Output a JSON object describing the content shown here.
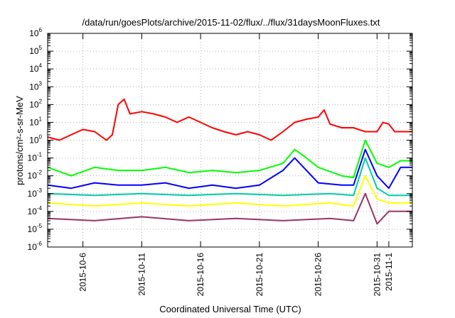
{
  "chart_data": {
    "type": "line",
    "title": "/data/run/goesPlots/archive/2015-11-02/flux/../flux/31daysMoonFluxes.txt",
    "xlabel": "Coordinated Universal Time (UTC)",
    "ylabel": "protons/cm²-s-sr-MeV",
    "y_scale": "log",
    "ylim_exponent": [
      -6,
      6
    ],
    "xlim": [
      "2015-10-03",
      "2015-11-03"
    ],
    "grid": true,
    "x_ticks": [
      {
        "date": "2015-10-06",
        "label": "2015-10-6"
      },
      {
        "date": "2015-10-11",
        "label": "2015-10-11"
      },
      {
        "date": "2015-10-16",
        "label": "2015-10-16"
      },
      {
        "date": "2015-10-21",
        "label": "2015-10-21"
      },
      {
        "date": "2015-10-26",
        "label": "2015-10-26"
      },
      {
        "date": "2015-10-31",
        "label": "2015-10-31"
      },
      {
        "date": "2015-11-01",
        "label": "2015-11-1"
      }
    ],
    "y_ticks": [
      {
        "exp": 6,
        "base": "10",
        "sup": "6"
      },
      {
        "exp": 5,
        "base": "10",
        "sup": "5"
      },
      {
        "exp": 4,
        "base": "10",
        "sup": "4"
      },
      {
        "exp": 3,
        "base": "10",
        "sup": "3"
      },
      {
        "exp": 2,
        "base": "10",
        "sup": "2"
      },
      {
        "exp": 1,
        "base": "10",
        "sup": "1"
      },
      {
        "exp": 0,
        "base": "10",
        "sup": "0"
      },
      {
        "exp": -1,
        "base": "10",
        "sup": "-1"
      },
      {
        "exp": -2,
        "base": "10",
        "sup": "-2"
      },
      {
        "exp": -3,
        "base": "10",
        "sup": "-3"
      },
      {
        "exp": -4,
        "base": "10",
        "sup": "-4"
      },
      {
        "exp": -5,
        "base": "10",
        "sup": "-5"
      },
      {
        "exp": -6,
        "base": "10",
        "sup": "-6"
      }
    ],
    "series": [
      {
        "color": "#ff0000",
        "points": [
          [
            "2015-10-03",
            1.5
          ],
          [
            "2015-10-04",
            1
          ],
          [
            "2015-10-05",
            2
          ],
          [
            "2015-10-06",
            4
          ],
          [
            "2015-10-07",
            3
          ],
          [
            "2015-10-08",
            1
          ],
          [
            "2015-10-08 12:00",
            2
          ],
          [
            "2015-10-09",
            100
          ],
          [
            "2015-10-09 12:00",
            200
          ],
          [
            "2015-10-10",
            30
          ],
          [
            "2015-10-11",
            40
          ],
          [
            "2015-10-12",
            30
          ],
          [
            "2015-10-13",
            20
          ],
          [
            "2015-10-14",
            10
          ],
          [
            "2015-10-15",
            20
          ],
          [
            "2015-10-16",
            10
          ],
          [
            "2015-10-17",
            5
          ],
          [
            "2015-10-18",
            3
          ],
          [
            "2015-10-19",
            2
          ],
          [
            "2015-10-20",
            3
          ],
          [
            "2015-10-21",
            2
          ],
          [
            "2015-10-22",
            1
          ],
          [
            "2015-10-23",
            3
          ],
          [
            "2015-10-24",
            10
          ],
          [
            "2015-10-25",
            15
          ],
          [
            "2015-10-26",
            20
          ],
          [
            "2015-10-26 12:00",
            50
          ],
          [
            "2015-10-27",
            8
          ],
          [
            "2015-10-28",
            5
          ],
          [
            "2015-10-29",
            5
          ],
          [
            "2015-10-30",
            3
          ],
          [
            "2015-10-31",
            3
          ],
          [
            "2015-10-31 12:00",
            10
          ],
          [
            "2015-11-01",
            8
          ],
          [
            "2015-11-01 12:00",
            3
          ],
          [
            "2015-11-03",
            3
          ]
        ]
      },
      {
        "color": "#00ff00",
        "points": [
          [
            "2015-10-03",
            0.03
          ],
          [
            "2015-10-05",
            0.01
          ],
          [
            "2015-10-07",
            0.03
          ],
          [
            "2015-10-09",
            0.02
          ],
          [
            "2015-10-11",
            0.02
          ],
          [
            "2015-10-13",
            0.03
          ],
          [
            "2015-10-15",
            0.015
          ],
          [
            "2015-10-17",
            0.02
          ],
          [
            "2015-10-19",
            0.015
          ],
          [
            "2015-10-21",
            0.02
          ],
          [
            "2015-10-23",
            0.05
          ],
          [
            "2015-10-24",
            0.3
          ],
          [
            "2015-10-25",
            0.1
          ],
          [
            "2015-10-26",
            0.03
          ],
          [
            "2015-10-28",
            0.01
          ],
          [
            "2015-10-29",
            0.008
          ],
          [
            "2015-10-30",
            1
          ],
          [
            "2015-10-31",
            0.05
          ],
          [
            "2015-11-01",
            0.03
          ],
          [
            "2015-11-02",
            0.07
          ],
          [
            "2015-11-03",
            0.07
          ]
        ]
      },
      {
        "color": "#00ccaa",
        "points": [
          [
            "2015-10-03",
            0.001
          ],
          [
            "2015-10-07",
            0.0008
          ],
          [
            "2015-10-11",
            0.001
          ],
          [
            "2015-10-15",
            0.0008
          ],
          [
            "2015-10-19",
            0.001
          ],
          [
            "2015-10-23",
            0.0008
          ],
          [
            "2015-10-27",
            0.001
          ],
          [
            "2015-10-29",
            0.0008
          ],
          [
            "2015-10-30",
            0.1
          ],
          [
            "2015-10-31",
            0.002
          ],
          [
            "2015-11-01",
            0.0008
          ],
          [
            "2015-11-03",
            0.0008
          ]
        ]
      },
      {
        "color": "#0000ff",
        "points": [
          [
            "2015-10-03",
            0.003
          ],
          [
            "2015-10-05",
            0.002
          ],
          [
            "2015-10-07",
            0.004
          ],
          [
            "2015-10-09",
            0.003
          ],
          [
            "2015-10-11",
            0.003
          ],
          [
            "2015-10-13",
            0.004
          ],
          [
            "2015-10-15",
            0.002
          ],
          [
            "2015-10-17",
            0.003
          ],
          [
            "2015-10-19",
            0.002
          ],
          [
            "2015-10-21",
            0.003
          ],
          [
            "2015-10-23",
            0.02
          ],
          [
            "2015-10-24",
            0.1
          ],
          [
            "2015-10-25",
            0.02
          ],
          [
            "2015-10-26",
            0.004
          ],
          [
            "2015-10-28",
            0.003
          ],
          [
            "2015-10-29",
            0.003
          ],
          [
            "2015-10-30",
            0.3
          ],
          [
            "2015-10-31",
            0.01
          ],
          [
            "2015-11-01",
            0.002
          ],
          [
            "2015-11-02",
            0.03
          ],
          [
            "2015-11-03",
            0.03
          ]
        ]
      },
      {
        "color": "#ffff00",
        "points": [
          [
            "2015-10-03",
            0.0003
          ],
          [
            "2015-10-07",
            0.0002
          ],
          [
            "2015-10-11",
            0.0003
          ],
          [
            "2015-10-15",
            0.0002
          ],
          [
            "2015-10-19",
            0.0003
          ],
          [
            "2015-10-23",
            0.0002
          ],
          [
            "2015-10-27",
            0.0003
          ],
          [
            "2015-10-29",
            0.0002
          ],
          [
            "2015-10-30",
            0.01
          ],
          [
            "2015-10-31",
            0.0005
          ],
          [
            "2015-11-01",
            0.0003
          ],
          [
            "2015-11-03",
            0.0003
          ]
        ]
      },
      {
        "color": "#993366",
        "points": [
          [
            "2015-10-03",
            4e-05
          ],
          [
            "2015-10-07",
            3e-05
          ],
          [
            "2015-10-11",
            5e-05
          ],
          [
            "2015-10-15",
            3e-05
          ],
          [
            "2015-10-19",
            4e-05
          ],
          [
            "2015-10-23",
            3e-05
          ],
          [
            "2015-10-27",
            4e-05
          ],
          [
            "2015-10-29",
            3e-05
          ],
          [
            "2015-10-30",
            0.001
          ],
          [
            "2015-10-31",
            2e-05
          ],
          [
            "2015-11-01",
            0.0001
          ],
          [
            "2015-11-03",
            0.0001
          ]
        ]
      }
    ]
  }
}
